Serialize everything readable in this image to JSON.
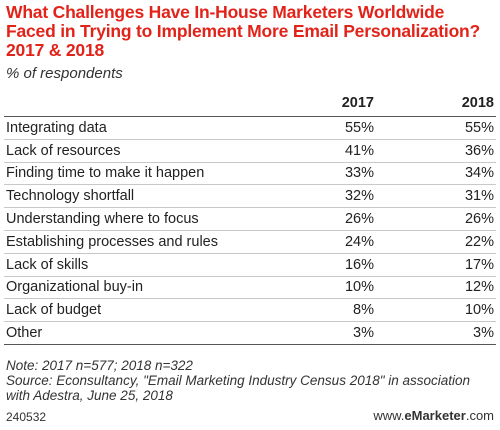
{
  "chart_data": {
    "type": "table",
    "title": "What Challenges Have In-House Marketers Worldwide Faced in Trying to Implement More Email Personalization? 2017 & 2018",
    "subtitle": "% of respondents",
    "columns": [
      "",
      "2017",
      "2018"
    ],
    "categories": [
      "Integrating data",
      "Lack of resources",
      "Finding time to make it happen",
      "Technology shortfall",
      "Understanding where to focus",
      "Establishing processes and rules",
      "Lack of skills",
      "Organizational buy-in",
      "Lack of budget",
      "Other"
    ],
    "series": [
      {
        "name": "2017",
        "values": [
          55,
          41,
          33,
          32,
          26,
          24,
          16,
          10,
          8,
          3
        ]
      },
      {
        "name": "2018",
        "values": [
          55,
          36,
          34,
          31,
          26,
          22,
          17,
          12,
          10,
          3
        ]
      }
    ],
    "unit": "%",
    "note": "Note: 2017 n=577; 2018 n=322",
    "source": "Source: Econsultancy, \"Email Marketing Industry Census 2018\" in association with Adestra, June 25, 2018",
    "chart_id": "240532",
    "brand_prefix": "www.",
    "brand_name": "eMarketer",
    "brand_suffix": ".com",
    "colors": {
      "title": "#e2231a",
      "text": "#222222",
      "rule": "#555555"
    }
  }
}
